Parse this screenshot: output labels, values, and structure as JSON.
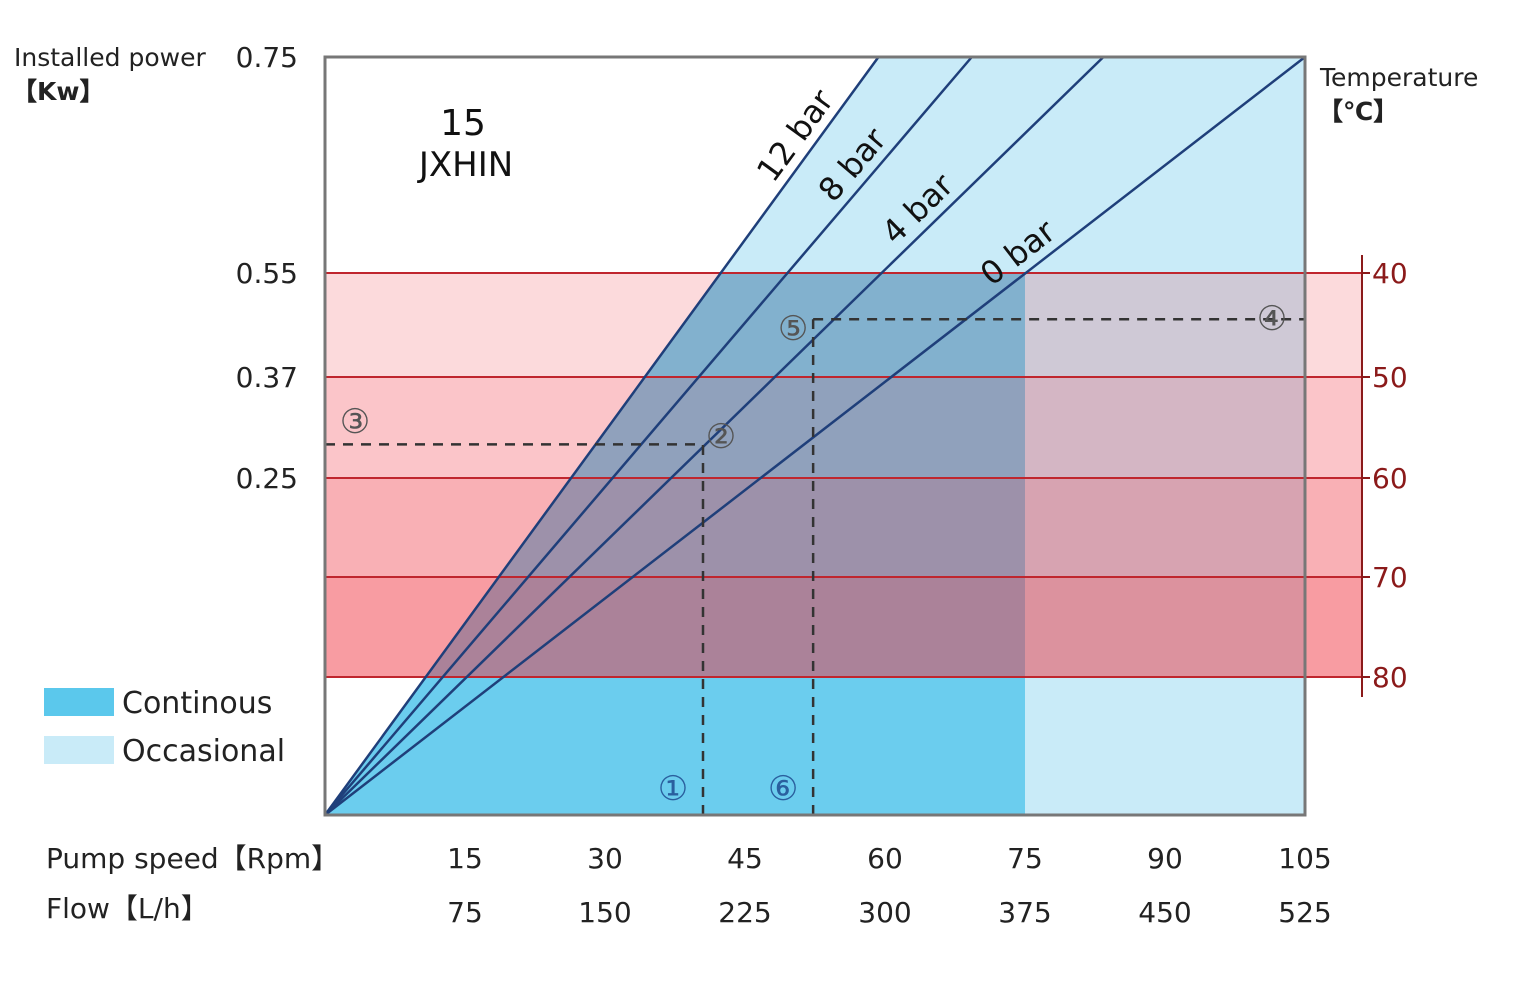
{
  "chart_data": {
    "type": "line",
    "model_label": {
      "line1": "15",
      "line2": "JXHIN"
    },
    "left_axis": {
      "label_line1": "Installed power",
      "label_line2": "【Kw】",
      "ticks": [
        0.75,
        0.55,
        0.37,
        0.25
      ]
    },
    "right_axis": {
      "label_line1": "Temperature",
      "label_line2": "【℃】",
      "ticks": [
        40,
        50,
        60,
        70,
        80
      ]
    },
    "x_axis_speed": {
      "label": "Pump speed【Rpm】",
      "ticks": [
        15,
        30,
        45,
        60,
        75,
        90,
        105
      ]
    },
    "x_axis_flow": {
      "label": "Flow【L/h】",
      "ticks": [
        75,
        150,
        225,
        300,
        375,
        450,
        525
      ]
    },
    "series": [
      {
        "name": "12 bar",
        "points": [
          [
            0,
            0
          ],
          [
            59.3,
            0.75
          ]
        ]
      },
      {
        "name": "8 bar",
        "points": [
          [
            0,
            0
          ],
          [
            69.3,
            0.75
          ]
        ]
      },
      {
        "name": "4 bar",
        "points": [
          [
            0,
            0
          ],
          [
            83.4,
            0.75
          ]
        ]
      },
      {
        "name": "0 bar",
        "points": [
          [
            0,
            0
          ],
          [
            105,
            0.75
          ]
        ]
      }
    ],
    "regions": {
      "continuous_speed_max": 75,
      "occasional_speed_max": 105,
      "continuous_power_max": 0.55
    },
    "legend": [
      {
        "name": "Continous",
        "color": "#5bc8ec"
      },
      {
        "name": "Occasional",
        "color": "#c9ebf8"
      }
    ],
    "legend_position": "bottom-left",
    "temperature_band_color": "#f0303c",
    "line_color": "#1f3f7a",
    "annotations": [
      {
        "label": "①",
        "speed": 40.5
      },
      {
        "label": "②",
        "speed": 40.5,
        "power": 0.29
      },
      {
        "label": "③",
        "power": 0.29
      },
      {
        "label": "⑥",
        "speed": 52.3
      },
      {
        "label": "⑤",
        "speed": 52.3,
        "power": 0.47
      },
      {
        "label": "④",
        "power": 0.47
      }
    ]
  }
}
